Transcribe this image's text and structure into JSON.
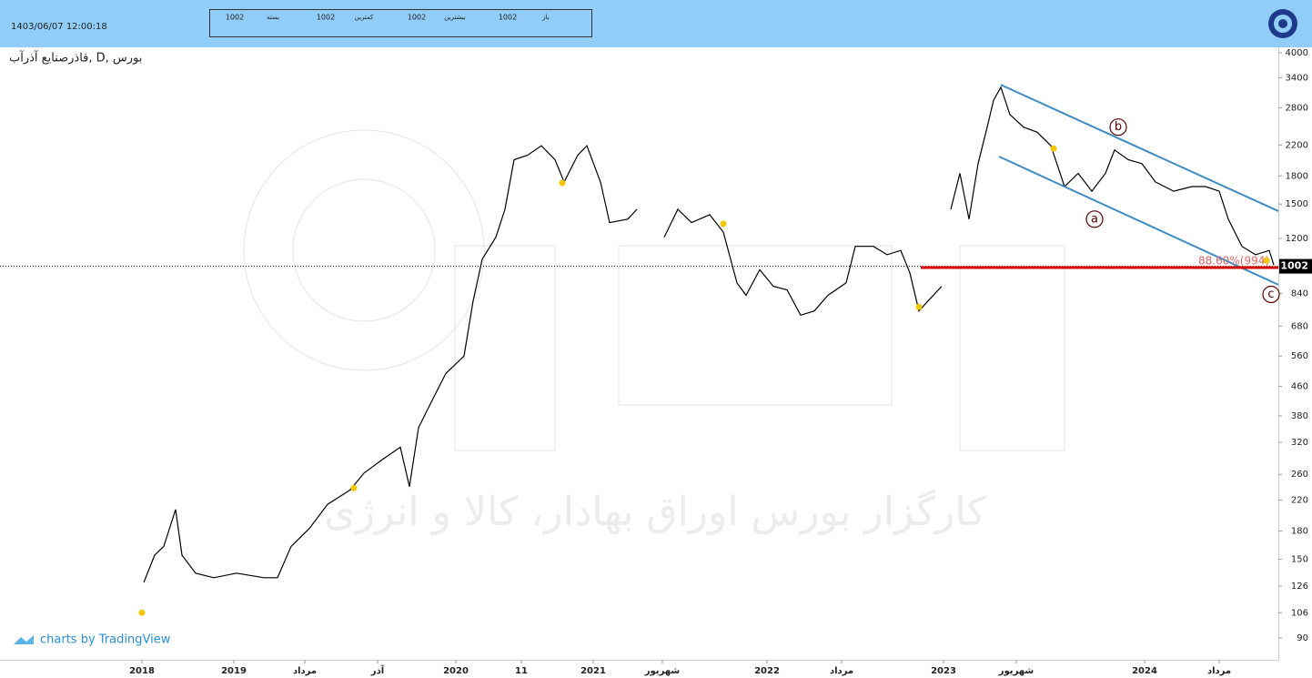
{
  "chart_data": {
    "type": "line",
    "title": "فاذرصنایع آذرآب, D, بورس",
    "timestamp": "1403/06/07 12:00:18",
    "ohlc": [
      {
        "label": "باز",
        "value": 1002
      },
      {
        "label": "بیشترین",
        "value": 1002
      },
      {
        "label": "کمترین",
        "value": 1002
      },
      {
        "label": "بسته",
        "value": 1002
      }
    ],
    "watermark": "کارگزار بورس اوراق بهادار، کالا و انرژی",
    "brand": "charts by TradingView",
    "log_scale": true,
    "xlim": [
      0,
      1405
    ],
    "ylim": [
      90,
      4000
    ],
    "xticks": [
      {
        "value": 156,
        "label": "2018"
      },
      {
        "value": 257,
        "label": "2019"
      },
      {
        "value": 335,
        "label": "مرداد"
      },
      {
        "value": 415,
        "label": "آذر"
      },
      {
        "value": 501,
        "label": "2020"
      },
      {
        "value": 573,
        "label": "11"
      },
      {
        "value": 652,
        "label": "2021"
      },
      {
        "value": 728,
        "label": "شهریور"
      },
      {
        "value": 843,
        "label": "2022"
      },
      {
        "value": 925,
        "label": "مرداد"
      },
      {
        "value": 1037,
        "label": "2023"
      },
      {
        "value": 1117,
        "label": "شهریور"
      },
      {
        "value": 1258,
        "label": "2024"
      },
      {
        "value": 1340,
        "label": "مرداد"
      }
    ],
    "yticks": [
      4000,
      3400,
      2800,
      2200,
      1800,
      1500,
      1200,
      840,
      680,
      560,
      460,
      380,
      320,
      260,
      220,
      180,
      150,
      126,
      106,
      90
    ],
    "series": [
      {
        "color": "#000000",
        "x": [
          158,
          170,
          180,
          193,
          200,
          215,
          235,
          260,
          290,
          305,
          320,
          340,
          360,
          385,
          400,
          420,
          440,
          450,
          460,
          475,
          490,
          510,
          520,
          530,
          545,
          555,
          565,
          580,
          595,
          610,
          620,
          635,
          645,
          660,
          670,
          690,
          700,
          705,
          730,
          745,
          760,
          780,
          795,
          810,
          820,
          835,
          850,
          865,
          880,
          895,
          910,
          930,
          940,
          960,
          975,
          990,
          1000,
          1010,
          1020,
          1035,
          1040,
          1045,
          1055,
          1065,
          1075,
          1085,
          1092,
          1100,
          1110,
          1125,
          1140,
          1155,
          1170,
          1185,
          1200,
          1215,
          1225,
          1240,
          1255,
          1270,
          1290,
          1310,
          1325,
          1340,
          1350,
          1365,
          1380,
          1395,
          1400
        ],
        "values": [
          129,
          154,
          163,
          207,
          154,
          137,
          133,
          137,
          133,
          133,
          163,
          183,
          214,
          235,
          262,
          286,
          310,
          240,
          352,
          420,
          500,
          560,
          800,
          1050,
          1210,
          1450,
          2000,
          2060,
          2190,
          2000,
          1730,
          2060,
          2190,
          1730,
          1330,
          1360,
          1450,
          null,
          1210,
          1450,
          1330,
          1400,
          1250,
          900,
          830,
          980,
          880,
          860,
          730,
          750,
          830,
          900,
          1140,
          1140,
          1080,
          1110,
          960,
          750,
          800,
          880,
          null,
          1450,
          1830,
          1360,
          1950,
          2470,
          2940,
          3200,
          2680,
          2470,
          2390,
          2190,
          1680,
          1830,
          1630,
          1830,
          2130,
          2000,
          1950,
          1730,
          1630,
          1680,
          1680,
          1630,
          1360,
          1140,
          1080,
          1110,
          1010
        ]
      }
    ],
    "dots": {
      "color": "#f2c600",
      "x": [
        156,
        389,
        618,
        795,
        1010,
        1158,
        1392
      ],
      "values": [
        106,
        238,
        1720,
        1320,
        770,
        2150,
        1040
      ]
    },
    "channel_lines": [
      {
        "color": "#3d8cc4",
        "x": [
          1100,
          1405
        ],
        "values": [
          3250,
          1433
        ]
      },
      {
        "color": "#3d8cc4",
        "x": [
          1098,
          1405
        ],
        "values": [
          2041,
          889
        ]
      }
    ],
    "fib_level": {
      "color": "#d40000",
      "x": [
        1012,
        1405
      ],
      "value": 994,
      "label": "88.60%(994)"
    },
    "last_price": {
      "value": 1002,
      "label": "1002"
    },
    "wave_labels": [
      {
        "text": "a",
        "x": 1203,
        "value": 1360
      },
      {
        "text": "b",
        "x": 1229,
        "value": 2470
      },
      {
        "text": "c",
        "x": 1397,
        "value": 835
      }
    ]
  }
}
